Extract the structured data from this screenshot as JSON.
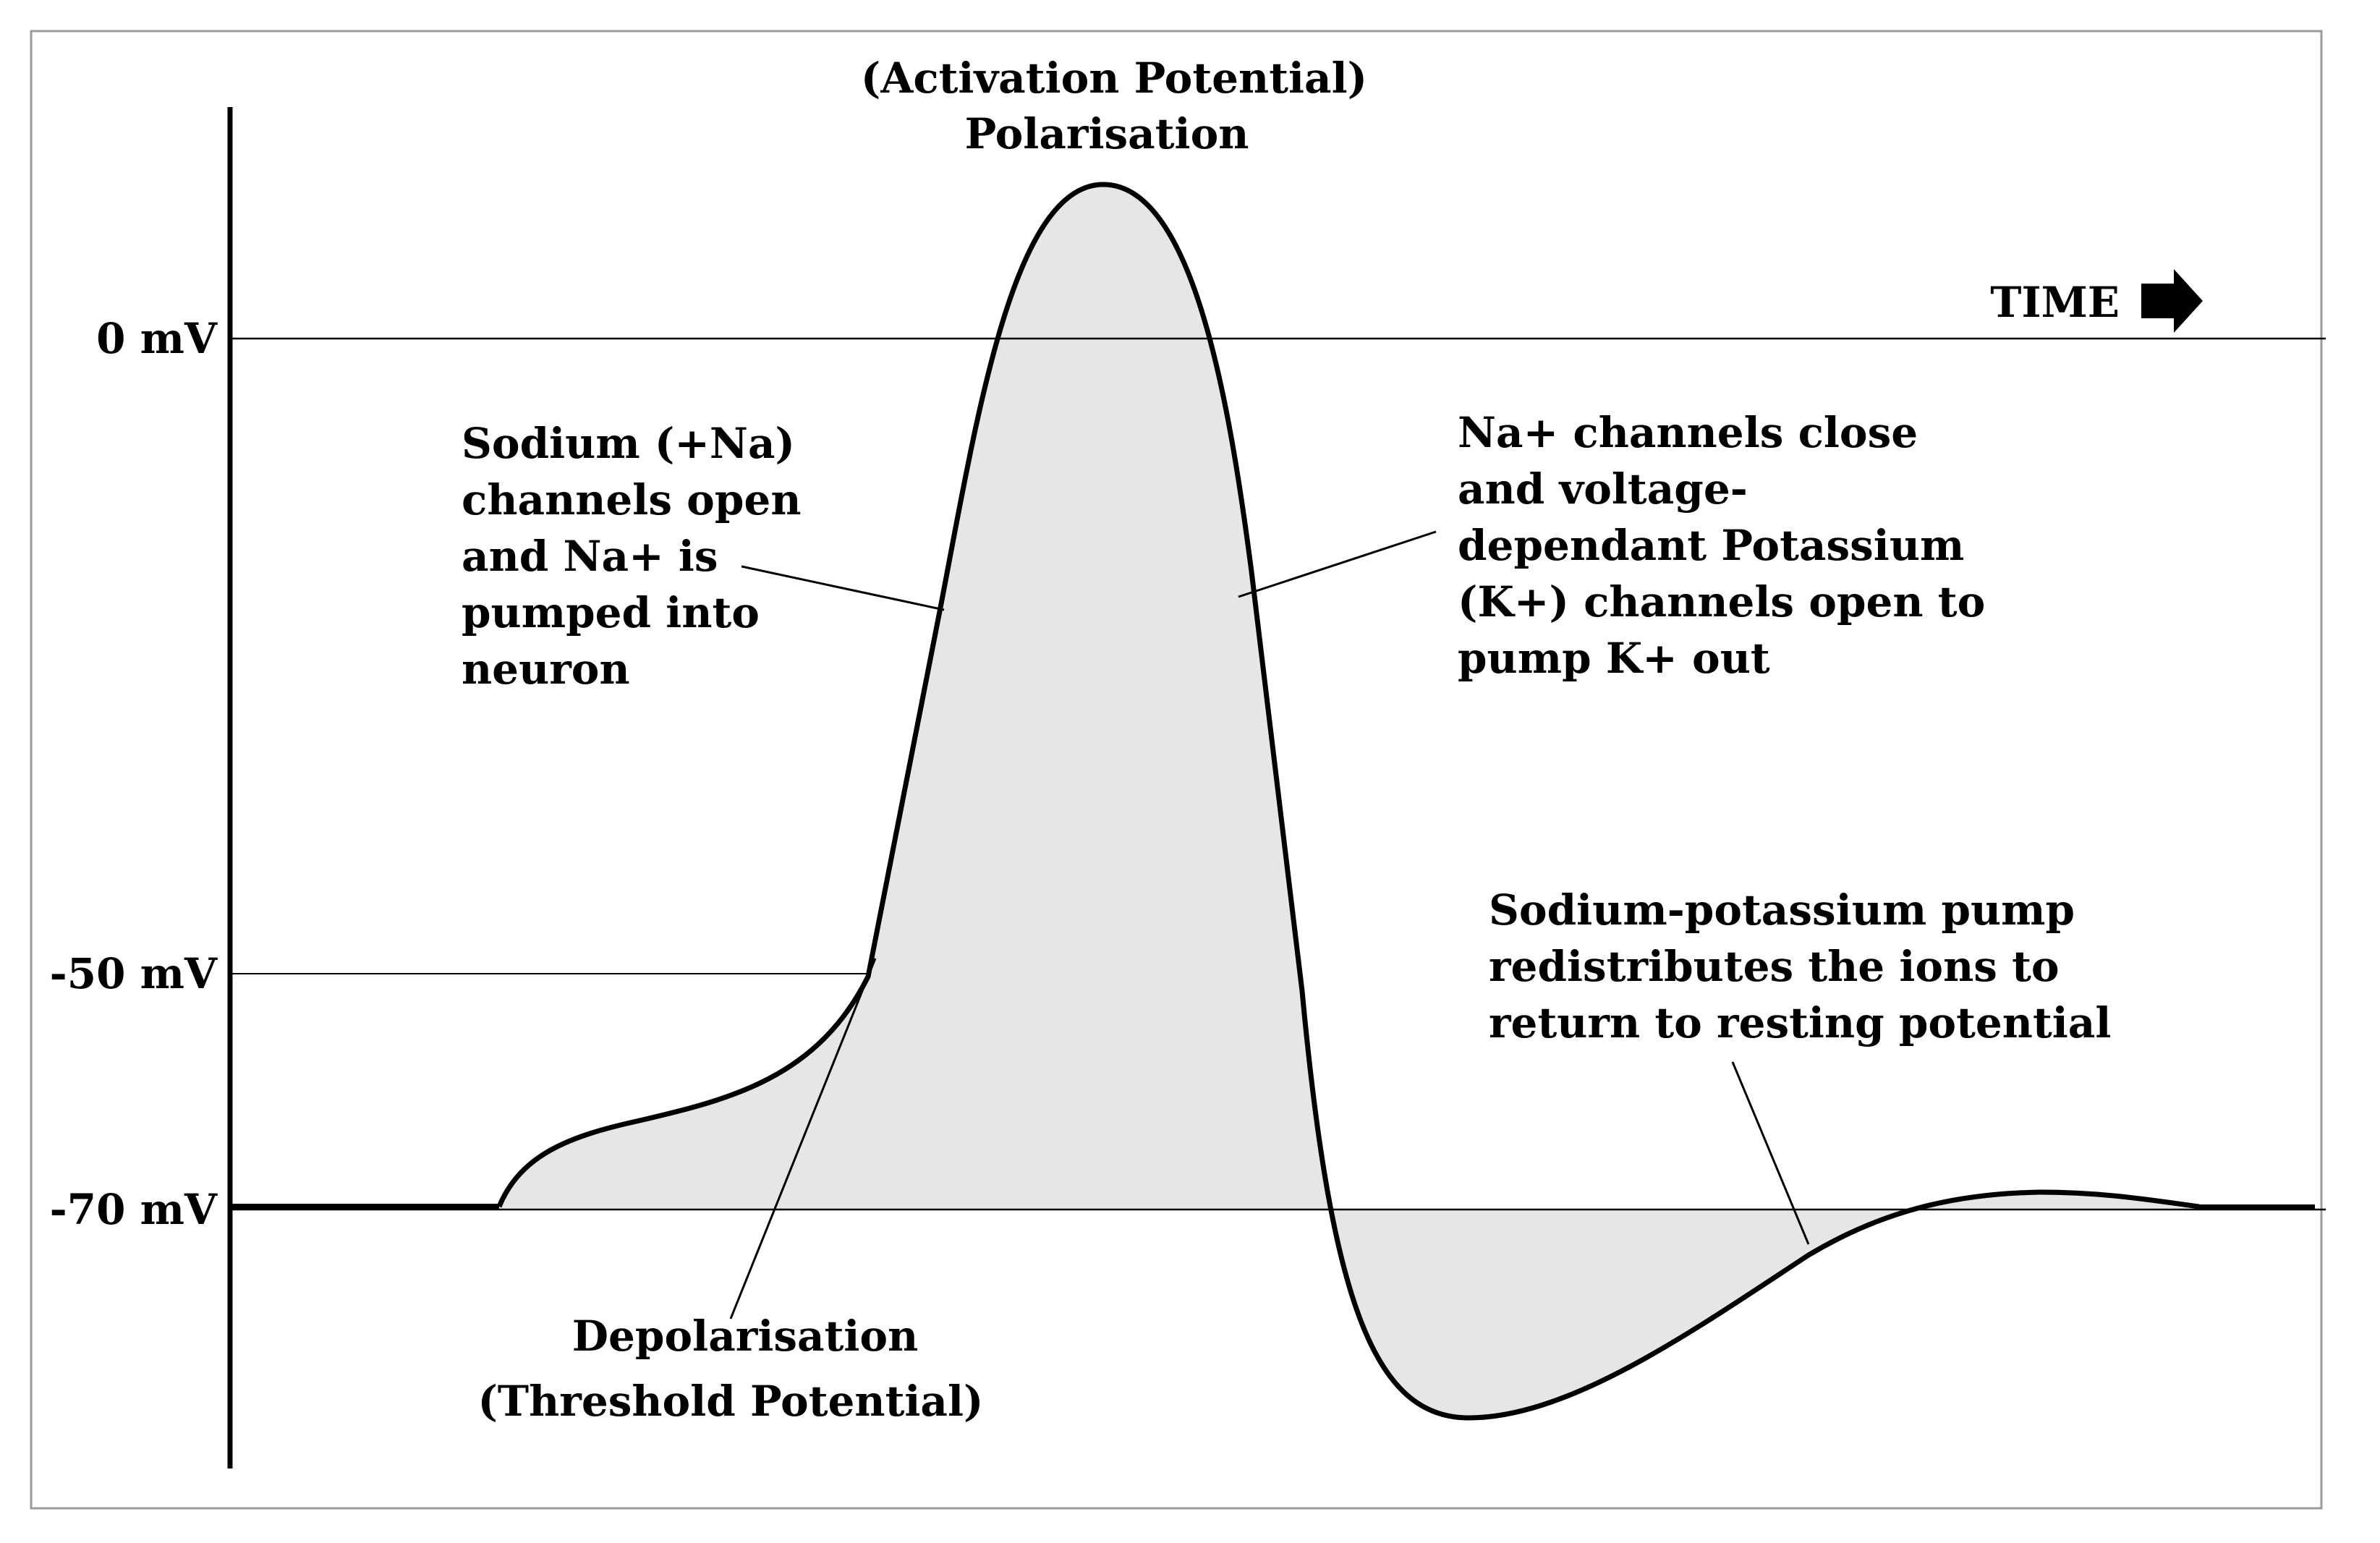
{
  "colors": {
    "curve": "#000000",
    "fill": "#e6e6e6",
    "frame": "#9a9a9a",
    "background": "#ffffff"
  },
  "axis": {
    "zero_label": "0 mV",
    "threshold_label": "-50 mV",
    "resting_label": "-70 mV",
    "time_label": "TIME",
    "time_arrow_icon": "right-arrow-icon"
  },
  "annotations": {
    "peak": {
      "line1": "(Activation Potential)",
      "line2": "Polarisation"
    },
    "sodium": {
      "line1": "Sodium (+Na)",
      "line2": "channels open",
      "line3": "and Na+ is",
      "line4": "pumped into",
      "line5": "neuron"
    },
    "potassium": {
      "line1": "Na+ channels close",
      "line2": "and voltage-",
      "line3": "dependant Potassium",
      "line4": "(K+) channels open to",
      "line5": "pump K+ out"
    },
    "pump": {
      "line1": "Sodium-potassium pump",
      "line2": "redistributes the ions to",
      "line3": "return to resting potential"
    },
    "threshold": {
      "line1": "Depolarisation",
      "line2": "(Threshold Potential)"
    }
  }
}
